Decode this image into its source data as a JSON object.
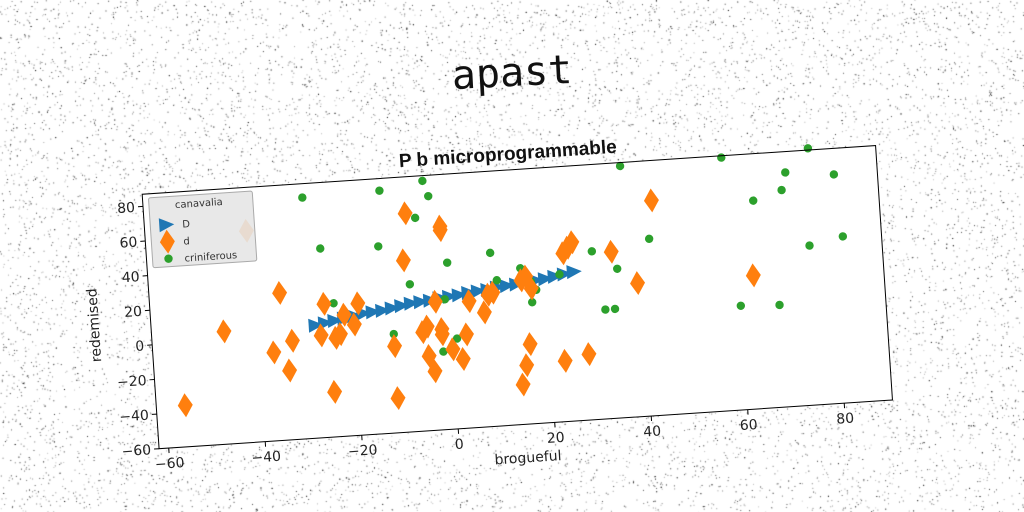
{
  "suptitle": "apast",
  "chart_data": {
    "type": "scatter",
    "title": "P b microprogrammable",
    "xlabel": "brogueful",
    "ylabel": "redemised",
    "xlim": [
      -62,
      90
    ],
    "ylim": [
      -60,
      87
    ],
    "xticks": [
      -60,
      -40,
      -20,
      0,
      20,
      40,
      60,
      80
    ],
    "yticks": [
      -60,
      -40,
      -20,
      0,
      20,
      40,
      60,
      80
    ],
    "xtick_labels": [
      "−60",
      "−40",
      "−20",
      "0",
      "20",
      "40",
      "60",
      "80"
    ],
    "ytick_labels": [
      "−60",
      "−40",
      "−20",
      "0",
      "20",
      "40",
      "60",
      "80"
    ],
    "grid": false,
    "legend": {
      "title": "canavalia",
      "placement": "top-left"
    },
    "series": [
      {
        "name": "D",
        "marker": "triangle-right",
        "color": "#1f77b4",
        "x": [
          -28,
          -26,
          -24,
          -22,
          -20,
          -18,
          -16,
          -14,
          -12,
          -10,
          -8,
          -6,
          -4,
          -2,
          0,
          2,
          4,
          6,
          8,
          10,
          12,
          14,
          16,
          18,
          20,
          22,
          24,
          26
        ],
        "y": [
          5,
          6,
          7,
          8,
          9,
          10,
          10.5,
          11,
          12,
          13,
          14,
          14.5,
          15,
          16,
          16.5,
          17,
          18,
          18.5,
          19,
          20,
          20.5,
          21,
          22,
          22.5,
          23,
          24,
          25,
          26
        ]
      },
      {
        "name": "d",
        "marker": "diamond",
        "color": "#ff7f0e",
        "x": [
          -56,
          -47,
          -41,
          -37,
          -35,
          -34,
          -33,
          -27,
          -26,
          -25,
          -24,
          -23,
          -22,
          -20,
          -19,
          -12,
          -12,
          -9,
          -8,
          -6,
          -5,
          -5,
          -4,
          -3,
          -2,
          -2,
          -1,
          -1,
          0,
          2,
          3,
          4,
          7,
          8,
          9,
          14,
          15,
          15,
          16,
          16,
          17,
          23,
          24,
          25,
          26,
          28,
          34,
          39,
          43,
          63
        ],
        "y": [
          -36,
          5,
          62,
          -9,
          25,
          -20,
          -3,
          -1,
          17,
          -34,
          -3,
          -1,
          10,
          4,
          16,
          -40,
          -10,
          39,
          66,
          -3,
          -17,
          0,
          -26,
          14,
          -2,
          -5,
          57,
          55,
          -14,
          -20,
          -6,
          13,
          6,
          16,
          17,
          -37,
          -26,
          23,
          -14,
          25,
          18,
          -25,
          37,
          40,
          43,
          -22,
          36,
          17,
          64,
          17
        ]
      },
      {
        "name": "criniferous",
        "marker": "circle",
        "color": "#2ca02c",
        "x": [
          -29,
          -26,
          -24,
          -14,
          -13,
          -12,
          -8,
          -6,
          -4,
          -3,
          -2,
          -1,
          0,
          1,
          9,
          10,
          15,
          17,
          17,
          18,
          23,
          30,
          32,
          34,
          35,
          37,
          42,
          58,
          60,
          64,
          68,
          70,
          71,
          75,
          76,
          81,
          82
        ],
        "y": [
          79,
          49,
          17,
          48,
          80,
          -3,
          25,
          63,
          84,
          75,
          -15,
          15,
          36,
          -8,
          40,
          24,
          30,
          22,
          10,
          17,
          25,
          37,
          3,
          3,
          26,
          85,
          42,
          86,
          0,
          60,
          -1,
          65,
          75,
          32,
          88,
          72,
          36
        ]
      }
    ]
  }
}
